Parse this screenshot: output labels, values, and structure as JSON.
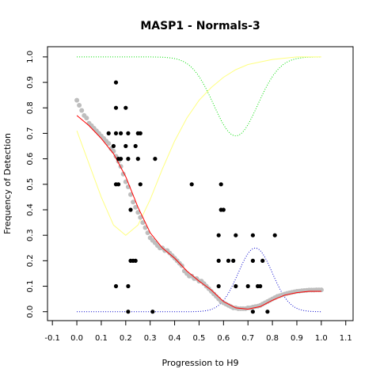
{
  "chart_data": {
    "type": "scatter",
    "title": "MASP1 - Normals-3",
    "xlabel": "Progression to H9",
    "ylabel": "Frequency of Detection",
    "xlim": [
      -0.12,
      1.13
    ],
    "ylim": [
      -0.035,
      1.04
    ],
    "x_ticks": [
      "-0.1",
      "0.0",
      "0.1",
      "0.2",
      "0.3",
      "0.4",
      "0.5",
      "0.6",
      "0.7",
      "0.8",
      "0.9",
      "1.0",
      "1.1"
    ],
    "y_ticks": [
      "0.0",
      "0.1",
      "0.2",
      "0.3",
      "0.4",
      "0.5",
      "0.6",
      "0.7",
      "0.8",
      "0.9",
      "1.0"
    ],
    "grid": false,
    "colors": {
      "points": "#000000",
      "smoothed_points": "#bebebe",
      "fit_line": "#ff0000",
      "green_curve": "#00dd00",
      "yellow_curve": "#ffff80",
      "blue_curve": "#0000cc"
    },
    "black_points": [
      [
        0.16,
        0.9
      ],
      [
        0.16,
        0.8
      ],
      [
        0.2,
        0.8
      ],
      [
        0.13,
        0.7
      ],
      [
        0.16,
        0.7
      ],
      [
        0.18,
        0.7
      ],
      [
        0.21,
        0.7
      ],
      [
        0.25,
        0.7
      ],
      [
        0.26,
        0.7
      ],
      [
        0.15,
        0.65
      ],
      [
        0.2,
        0.65
      ],
      [
        0.24,
        0.65
      ],
      [
        0.17,
        0.6
      ],
      [
        0.18,
        0.6
      ],
      [
        0.21,
        0.6
      ],
      [
        0.25,
        0.6
      ],
      [
        0.32,
        0.6
      ],
      [
        0.16,
        0.5
      ],
      [
        0.17,
        0.5
      ],
      [
        0.26,
        0.5
      ],
      [
        0.47,
        0.5
      ],
      [
        0.59,
        0.5
      ],
      [
        0.22,
        0.4
      ],
      [
        0.59,
        0.4
      ],
      [
        0.6,
        0.4
      ],
      [
        0.58,
        0.3
      ],
      [
        0.65,
        0.3
      ],
      [
        0.72,
        0.3
      ],
      [
        0.81,
        0.3
      ],
      [
        0.22,
        0.2
      ],
      [
        0.23,
        0.2
      ],
      [
        0.24,
        0.2
      ],
      [
        0.58,
        0.2
      ],
      [
        0.62,
        0.2
      ],
      [
        0.64,
        0.2
      ],
      [
        0.72,
        0.2
      ],
      [
        0.76,
        0.2
      ],
      [
        0.16,
        0.1
      ],
      [
        0.21,
        0.1
      ],
      [
        0.58,
        0.1
      ],
      [
        0.65,
        0.1
      ],
      [
        0.7,
        0.1
      ],
      [
        0.74,
        0.1
      ],
      [
        0.75,
        0.1
      ],
      [
        0.21,
        0.0
      ],
      [
        0.31,
        0.0
      ],
      [
        0.72,
        0.0
      ],
      [
        0.78,
        0.0
      ]
    ],
    "smoothed_series": [
      [
        0.0,
        0.83
      ],
      [
        0.01,
        0.81
      ],
      [
        0.02,
        0.79
      ],
      [
        0.03,
        0.77
      ],
      [
        0.04,
        0.76
      ],
      [
        0.05,
        0.74
      ],
      [
        0.06,
        0.73
      ],
      [
        0.07,
        0.72
      ],
      [
        0.08,
        0.71
      ],
      [
        0.09,
        0.7
      ],
      [
        0.1,
        0.69
      ],
      [
        0.11,
        0.68
      ],
      [
        0.12,
        0.67
      ],
      [
        0.13,
        0.66
      ],
      [
        0.14,
        0.64
      ],
      [
        0.15,
        0.63
      ],
      [
        0.16,
        0.61
      ],
      [
        0.17,
        0.59
      ],
      [
        0.18,
        0.57
      ],
      [
        0.19,
        0.54
      ],
      [
        0.2,
        0.51
      ],
      [
        0.21,
        0.49
      ],
      [
        0.22,
        0.46
      ],
      [
        0.23,
        0.43
      ],
      [
        0.24,
        0.41
      ],
      [
        0.25,
        0.39
      ],
      [
        0.26,
        0.37
      ],
      [
        0.27,
        0.35
      ],
      [
        0.28,
        0.33
      ],
      [
        0.29,
        0.31
      ],
      [
        0.3,
        0.29
      ],
      [
        0.31,
        0.28
      ],
      [
        0.32,
        0.27
      ],
      [
        0.33,
        0.26
      ],
      [
        0.34,
        0.25
      ],
      [
        0.35,
        0.25
      ],
      [
        0.36,
        0.24
      ],
      [
        0.37,
        0.24
      ],
      [
        0.38,
        0.23
      ],
      [
        0.39,
        0.22
      ],
      [
        0.4,
        0.21
      ],
      [
        0.41,
        0.2
      ],
      [
        0.42,
        0.19
      ],
      [
        0.43,
        0.18
      ],
      [
        0.44,
        0.16
      ],
      [
        0.45,
        0.15
      ],
      [
        0.46,
        0.14
      ],
      [
        0.47,
        0.14
      ],
      [
        0.48,
        0.13
      ],
      [
        0.49,
        0.13
      ],
      [
        0.5,
        0.12
      ],
      [
        0.51,
        0.12
      ],
      [
        0.52,
        0.11
      ],
      [
        0.53,
        0.1
      ],
      [
        0.54,
        0.09
      ],
      [
        0.55,
        0.08
      ],
      [
        0.56,
        0.07
      ],
      [
        0.57,
        0.06
      ],
      [
        0.58,
        0.05
      ],
      [
        0.59,
        0.04
      ],
      [
        0.6,
        0.035
      ],
      [
        0.61,
        0.03
      ],
      [
        0.62,
        0.025
      ],
      [
        0.63,
        0.02
      ],
      [
        0.64,
        0.015
      ],
      [
        0.65,
        0.015
      ],
      [
        0.66,
        0.012
      ],
      [
        0.67,
        0.012
      ],
      [
        0.68,
        0.012
      ],
      [
        0.69,
        0.012
      ],
      [
        0.7,
        0.015
      ],
      [
        0.71,
        0.015
      ],
      [
        0.72,
        0.018
      ],
      [
        0.73,
        0.02
      ],
      [
        0.74,
        0.022
      ],
      [
        0.75,
        0.025
      ],
      [
        0.76,
        0.03
      ],
      [
        0.77,
        0.035
      ],
      [
        0.78,
        0.04
      ],
      [
        0.79,
        0.045
      ],
      [
        0.8,
        0.05
      ],
      [
        0.81,
        0.055
      ],
      [
        0.82,
        0.06
      ],
      [
        0.83,
        0.063
      ],
      [
        0.84,
        0.066
      ],
      [
        0.85,
        0.069
      ],
      [
        0.86,
        0.072
      ],
      [
        0.87,
        0.074
      ],
      [
        0.88,
        0.076
      ],
      [
        0.89,
        0.078
      ],
      [
        0.9,
        0.08
      ],
      [
        0.91,
        0.081
      ],
      [
        0.92,
        0.082
      ],
      [
        0.93,
        0.083
      ],
      [
        0.94,
        0.084
      ],
      [
        0.95,
        0.085
      ],
      [
        0.96,
        0.085
      ],
      [
        0.97,
        0.085
      ],
      [
        0.98,
        0.086
      ],
      [
        0.99,
        0.086
      ],
      [
        1.0,
        0.086
      ]
    ],
    "fit_line": [
      [
        0.0,
        0.77
      ],
      [
        0.05,
        0.73
      ],
      [
        0.1,
        0.68
      ],
      [
        0.15,
        0.62
      ],
      [
        0.2,
        0.53
      ],
      [
        0.25,
        0.41
      ],
      [
        0.3,
        0.31
      ],
      [
        0.35,
        0.25
      ],
      [
        0.4,
        0.21
      ],
      [
        0.45,
        0.16
      ],
      [
        0.5,
        0.12
      ],
      [
        0.55,
        0.085
      ],
      [
        0.6,
        0.04
      ],
      [
        0.65,
        0.015
      ],
      [
        0.7,
        0.01
      ],
      [
        0.75,
        0.02
      ],
      [
        0.8,
        0.045
      ],
      [
        0.85,
        0.065
      ],
      [
        0.9,
        0.075
      ],
      [
        0.95,
        0.08
      ],
      [
        1.0,
        0.08
      ]
    ],
    "curve_params": {
      "green_dotted": {
        "base": 1.0,
        "dip_center": 0.65,
        "dip_depth": 0.31,
        "dip_sigma": 0.09
      },
      "yellow_dotted": {
        "points": [
          [
            0.0,
            0.71
          ],
          [
            0.05,
            0.58
          ],
          [
            0.1,
            0.45
          ],
          [
            0.15,
            0.34
          ],
          [
            0.2,
            0.3
          ],
          [
            0.25,
            0.34
          ],
          [
            0.3,
            0.44
          ],
          [
            0.35,
            0.56
          ],
          [
            0.4,
            0.67
          ],
          [
            0.45,
            0.76
          ],
          [
            0.5,
            0.83
          ],
          [
            0.55,
            0.88
          ],
          [
            0.6,
            0.92
          ],
          [
            0.65,
            0.95
          ],
          [
            0.7,
            0.97
          ],
          [
            0.75,
            0.98
          ],
          [
            0.8,
            0.99
          ],
          [
            0.85,
            0.995
          ],
          [
            0.9,
            1.0
          ],
          [
            0.95,
            1.0
          ],
          [
            1.0,
            1.0
          ]
        ]
      },
      "blue_dotted": {
        "peak_center": 0.73,
        "peak_height": 0.25,
        "sigma": 0.07
      }
    }
  }
}
